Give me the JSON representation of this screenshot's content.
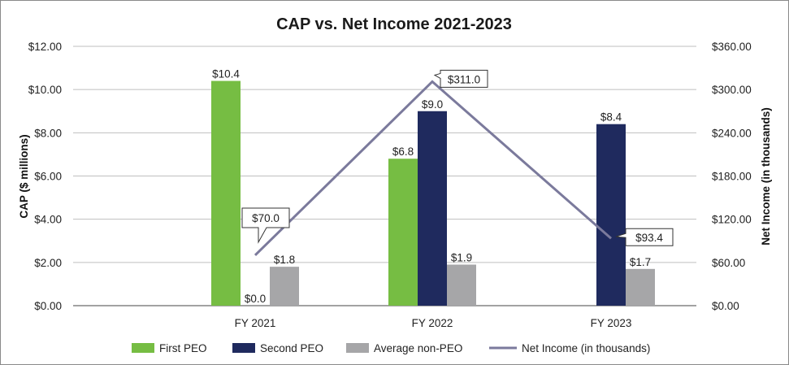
{
  "chart_data": {
    "type": "bar",
    "title": "CAP vs. Net Income 2021-2023",
    "categories": [
      "FY 2021",
      "FY 2022",
      "FY 2023"
    ],
    "ylabel": "CAP ($ millions)",
    "y2label": "Net Income (in thousands)",
    "ylim": [
      0,
      12
    ],
    "y2lim": [
      0,
      360
    ],
    "y_ticks": [
      "$0.00",
      "$2.00",
      "$4.00",
      "$6.00",
      "$8.00",
      "$10.00",
      "$12.00"
    ],
    "y2_ticks": [
      "$0.00",
      "$60.00",
      "$120.00",
      "$180.00",
      "$240.00",
      "$300.00",
      "$360.00"
    ],
    "grid": "horizontal",
    "legend_position": "bottom",
    "series": [
      {
        "name": "First PEO",
        "color": "#76bd43",
        "values": [
          10.4,
          6.8,
          null
        ],
        "labels": [
          "$10.4",
          "$6.8",
          ""
        ]
      },
      {
        "name": "Second PEO",
        "color": "#1f2a5e",
        "values": [
          0.0,
          9.0,
          8.4
        ],
        "labels": [
          "$0.0",
          "$9.0",
          "$8.4"
        ]
      },
      {
        "name": "Average non-PEO",
        "color": "#a6a6a8",
        "values": [
          1.8,
          1.9,
          1.7
        ],
        "labels": [
          "$1.8",
          "$1.9",
          "$1.7"
        ]
      }
    ],
    "line_series": {
      "name": "Net Income (in thousands)",
      "color": "#7b7a9c",
      "axis": "right",
      "values": [
        70.0,
        311.0,
        93.4
      ],
      "labels": [
        "$70.0",
        "$311.0",
        "$93.4"
      ]
    }
  }
}
